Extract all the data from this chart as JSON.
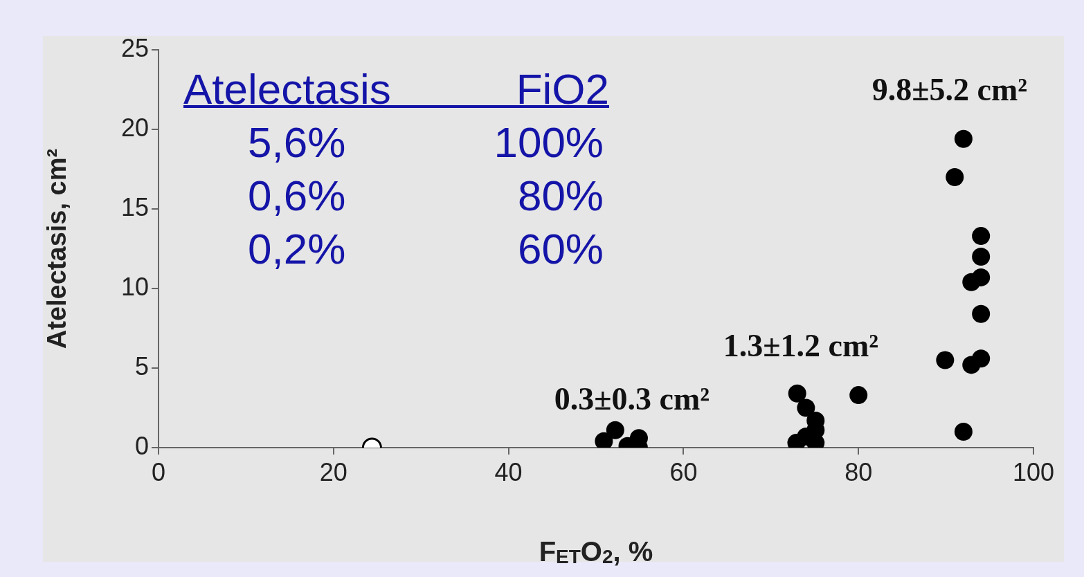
{
  "chart_data": {
    "type": "scatter",
    "xlabel": "F$_{ET}$O$_{2}$, %",
    "ylabel": "Atelectasis, cm²",
    "xlim": [
      0,
      100
    ],
    "xticks": [
      0,
      20,
      40,
      60,
      80,
      100
    ],
    "ylim": [
      0,
      25
    ],
    "yticks": [
      0,
      5,
      10,
      15,
      20,
      25
    ],
    "marker": "circle",
    "series": [
      {
        "color": "#000000",
        "x": [
          50.9,
          52.2,
          53.6,
          54.9,
          54.9,
          73.0,
          74.0,
          75.1,
          75.1,
          74.0,
          72.9,
          75.1,
          80.0,
          92.0,
          91.0,
          94.0,
          94.0,
          94.0,
          92.9,
          94.0,
          89.9,
          92.9,
          94.0,
          92.0
        ],
        "values": [
          0.4,
          1.1,
          0.1,
          0.6,
          0.0,
          3.4,
          2.5,
          1.7,
          1.1,
          0.7,
          0.3,
          0.3,
          3.3,
          19.4,
          17.0,
          13.3,
          12.0,
          10.7,
          10.4,
          8.4,
          5.5,
          5.2,
          5.6,
          1.0
        ]
      },
      {
        "color": "#000000",
        "x": [
          24.4
        ],
        "values": [
          0.0
        ]
      }
    ],
    "annotations": [
      "9.8±5.2 cm²",
      "1.3±1.2 cm²",
      "0.3±0.3 cm²",
      "Atelectasis",
      "FiO2",
      "5,6%",
      "100%",
      "0,6%",
      "80%",
      "0,2%",
      "60%"
    ]
  }
}
